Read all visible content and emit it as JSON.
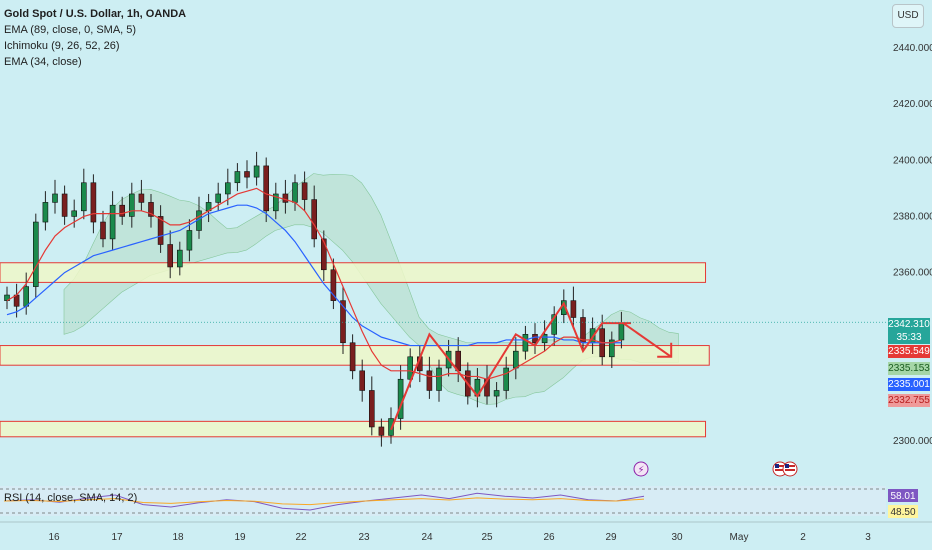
{
  "header": {
    "title": "Gold Spot / U.S. Dollar, 1h, OANDA",
    "indicators": [
      "EMA (89, close, 0, SMA, 5)",
      "Ichimoku (9, 26, 52, 26)",
      "EMA (34, close)"
    ],
    "currency_button": "USD"
  },
  "rsi": {
    "legend": "RSI (14, close, SMA, 14, 2)",
    "value_main": "58.01",
    "value_signal": "48.50",
    "overbought": 70,
    "oversold": 30,
    "series_hint": [
      50,
      52,
      48,
      55,
      60,
      44,
      40,
      47,
      52,
      49,
      38,
      35,
      44,
      50,
      55,
      60,
      54,
      63,
      58,
      55,
      60,
      52,
      50,
      58
    ]
  },
  "price_tags": [
    {
      "value": "2342.310",
      "color": "#26a69a",
      "price": 2342.31
    },
    {
      "value": "35:33",
      "color": "#26a69a",
      "price": 2338.6
    },
    {
      "value": "2335.549",
      "color": "#e53935",
      "price": 2335.549
    },
    {
      "value": "2335.153",
      "color": "#a5d6a7",
      "price": 2333.9,
      "text_color": "#1b5e20"
    },
    {
      "value": "2335.001",
      "color": "#2962ff",
      "price": 2331.4
    },
    {
      "value": "2332.755",
      "color": "#ef9a9a",
      "price": 2328.8,
      "text_color": "#b71c1c"
    }
  ],
  "chart_data": {
    "type": "candlestick",
    "symbol": "Gold Spot / U.S. Dollar",
    "timeframe": "1h",
    "ylim": [
      2295,
      2445
    ],
    "y_ticks": [
      2300,
      2320,
      2340,
      2360,
      2380,
      2400,
      2420,
      2440
    ],
    "y_tick_labels": [
      "2300.000",
      "2320.000",
      "2340.000",
      "2360.000",
      "2380.000",
      "2400.000",
      "2420.000",
      "2440.000"
    ],
    "x_labels": [
      "16",
      "17",
      "18",
      "19",
      "22",
      "23",
      "24",
      "25",
      "26",
      "29",
      "30",
      "May",
      "2",
      "3"
    ],
    "close_path": [
      2352,
      2348,
      2355,
      2378,
      2385,
      2388,
      2380,
      2382,
      2392,
      2378,
      2372,
      2384,
      2380,
      2388,
      2385,
      2380,
      2370,
      2362,
      2368,
      2375,
      2382,
      2385,
      2388,
      2392,
      2396,
      2394,
      2398,
      2382,
      2388,
      2385,
      2392,
      2386,
      2372,
      2361,
      2350,
      2335,
      2325,
      2318,
      2305,
      2302,
      2308,
      2322,
      2330,
      2325,
      2318,
      2326,
      2332,
      2325,
      2316,
      2322,
      2316,
      2318,
      2326,
      2332,
      2338,
      2335,
      2338,
      2345,
      2350,
      2344,
      2335,
      2340,
      2330,
      2336,
      2342
    ],
    "ema_89": [
      2345,
      2346,
      2348,
      2351,
      2354,
      2357,
      2360,
      2362,
      2364,
      2366,
      2367,
      2368,
      2369,
      2370,
      2371,
      2372,
      2373,
      2374,
      2375,
      2377,
      2379,
      2381,
      2382,
      2383,
      2384,
      2384,
      2383,
      2381,
      2378,
      2375,
      2371,
      2366,
      2361,
      2356,
      2352,
      2348,
      2344,
      2341,
      2339,
      2337,
      2336,
      2335,
      2334,
      2334,
      2334,
      2334,
      2334,
      2334,
      2334,
      2335,
      2335,
      2335,
      2336,
      2336,
      2336,
      2337,
      2337,
      2337,
      2336,
      2336,
      2335,
      2335,
      2335,
      2335,
      2335
    ],
    "ema_34": [
      2350,
      2352,
      2356,
      2362,
      2368,
      2373,
      2376,
      2378,
      2380,
      2381,
      2381,
      2381,
      2381,
      2382,
      2382,
      2381,
      2379,
      2377,
      2377,
      2378,
      2380,
      2382,
      2384,
      2386,
      2388,
      2389,
      2390,
      2388,
      2387,
      2386,
      2385,
      2382,
      2377,
      2371,
      2363,
      2355,
      2347,
      2339,
      2332,
      2327,
      2325,
      2325,
      2325,
      2324,
      2323,
      2323,
      2324,
      2324,
      2323,
      2323,
      2322,
      2323,
      2324,
      2326,
      2328,
      2330,
      2332,
      2335,
      2337,
      2337,
      2336,
      2336,
      2335,
      2335,
      2336
    ],
    "zones": [
      {
        "from": 2356.5,
        "to": 2363.5,
        "x_start": 0.0,
        "x_end": 0.757
      },
      {
        "from": 2327,
        "to": 2334,
        "x_start": 0.0,
        "x_end": 0.761
      },
      {
        "from": 2301.5,
        "to": 2307,
        "x_start": 0.0,
        "x_end": 0.757
      }
    ],
    "zigzag": [
      {
        "bar": 40,
        "price": 2304
      },
      {
        "bar": 44,
        "price": 2338
      },
      {
        "bar": 49,
        "price": 2316
      },
      {
        "bar": 53,
        "price": 2338
      },
      {
        "bar": 55,
        "price": 2334
      },
      {
        "bar": 58,
        "price": 2349
      },
      {
        "bar": 60,
        "price": 2332
      },
      {
        "bar": 62,
        "price": 2342
      },
      {
        "bar": 65,
        "price": 2342
      },
      {
        "bar": 68,
        "price": 2330
      }
    ],
    "projection_arrow": {
      "from_bar": 64.5,
      "from_price": 2342,
      "to_bar": 69.5,
      "to_price": 2330
    },
    "current_price": 2342.31
  },
  "events": {
    "lightning_label": "⚡",
    "flags": [
      "US",
      "US"
    ]
  }
}
